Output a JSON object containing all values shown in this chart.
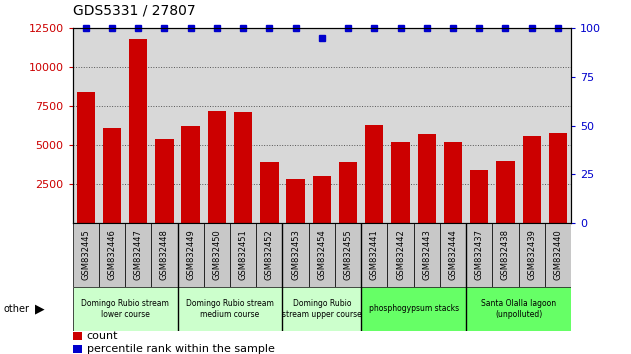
{
  "title": "GDS5331 / 27807",
  "samples": [
    "GSM832445",
    "GSM832446",
    "GSM832447",
    "GSM832448",
    "GSM832449",
    "GSM832450",
    "GSM832451",
    "GSM832452",
    "GSM832453",
    "GSM832454",
    "GSM832455",
    "GSM832441",
    "GSM832442",
    "GSM832443",
    "GSM832444",
    "GSM832437",
    "GSM832438",
    "GSM832439",
    "GSM832440"
  ],
  "counts": [
    8400,
    6100,
    11800,
    5400,
    6200,
    7200,
    7100,
    3900,
    2800,
    3000,
    3900,
    6300,
    5200,
    5700,
    5200,
    3400,
    4000,
    5600,
    5800
  ],
  "percentiles": [
    100,
    100,
    100,
    100,
    100,
    100,
    100,
    100,
    100,
    95,
    100,
    100,
    100,
    100,
    100,
    100,
    100,
    100,
    100
  ],
  "bar_color": "#cc0000",
  "dot_color": "#0000cc",
  "groups": [
    {
      "label": "Domingo Rubio stream\nlower course",
      "start": 0,
      "end": 3,
      "color": "#ccffcc"
    },
    {
      "label": "Domingo Rubio stream\nmedium course",
      "start": 4,
      "end": 7,
      "color": "#ccffcc"
    },
    {
      "label": "Domingo Rubio\nstream upper course",
      "start": 8,
      "end": 10,
      "color": "#ccffcc"
    },
    {
      "label": "phosphogypsum stacks",
      "start": 11,
      "end": 14,
      "color": "#66ff66"
    },
    {
      "label": "Santa Olalla lagoon\n(unpolluted)",
      "start": 15,
      "end": 18,
      "color": "#66ff66"
    }
  ],
  "ylim_left": [
    0,
    12500
  ],
  "ylim_right": [
    0,
    100
  ],
  "yticks_left": [
    2500,
    5000,
    7500,
    10000,
    12500
  ],
  "yticks_right": [
    0,
    25,
    50,
    75,
    100
  ],
  "group_dividers": [
    3.5,
    7.5,
    10.5,
    14.5
  ],
  "plot_bg": "#d8d8d8",
  "ticklabel_bg": "#c8c8c8"
}
